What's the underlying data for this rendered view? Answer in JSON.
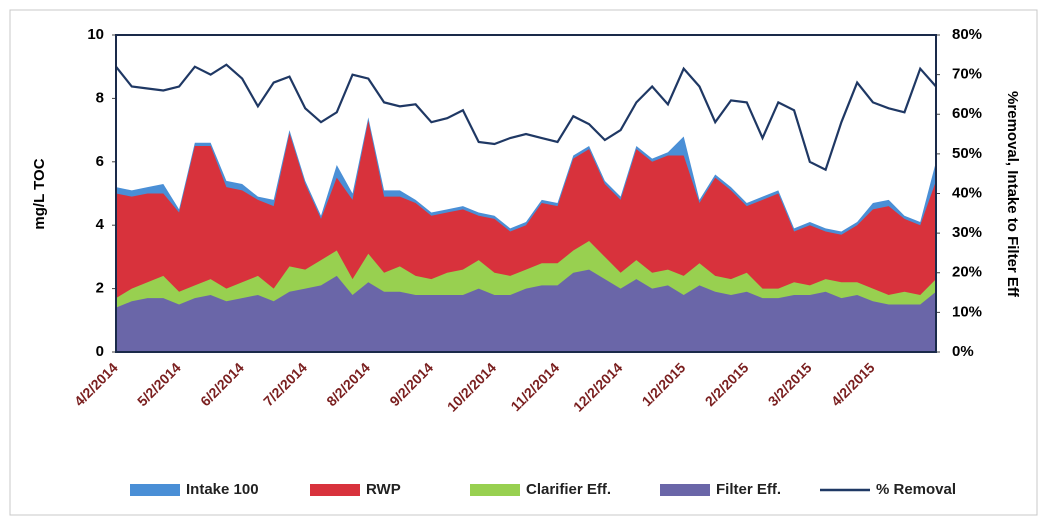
{
  "chart_data": {
    "type": "area",
    "y_label": "mg/L TOC",
    "y2_label": "%removal, Intake to Filter Eff",
    "categories": [
      "4/2/2014",
      null,
      null,
      null,
      "5/2/2014",
      null,
      null,
      null,
      "6/2/2014",
      null,
      null,
      null,
      "7/2/2014",
      null,
      null,
      null,
      "8/2/2014",
      null,
      null,
      null,
      "9/2/2014",
      null,
      null,
      null,
      "10/2/2014",
      null,
      null,
      null,
      "11/2/2014",
      null,
      null,
      null,
      "12/2/2014",
      null,
      null,
      null,
      "1/2/2015",
      null,
      null,
      null,
      "2/2/2015",
      null,
      null,
      null,
      "3/2/2015",
      null,
      null,
      null,
      "4/2/2015",
      null,
      null,
      null,
      null
    ],
    "ylim": [
      0,
      10
    ],
    "yticks": [
      0,
      2,
      4,
      6,
      8,
      10
    ],
    "y2lim": [
      0,
      80
    ],
    "y2ticks": [
      {
        "value": 0,
        "label": "0%"
      },
      {
        "value": 10,
        "label": "10%"
      },
      {
        "value": 20,
        "label": "20%"
      },
      {
        "value": 30,
        "label": "30%"
      },
      {
        "value": 40,
        "label": "40%"
      },
      {
        "value": 50,
        "label": "50%"
      },
      {
        "value": 60,
        "label": "60%"
      },
      {
        "value": 70,
        "label": "70%"
      },
      {
        "value": 80,
        "label": "80%"
      }
    ],
    "legend": "bottom",
    "series": [
      {
        "name": "Intake 100",
        "color": "#4a8fd6",
        "values": [
          5.2,
          5.1,
          5.2,
          5.3,
          4.5,
          6.6,
          6.6,
          5.4,
          5.3,
          4.9,
          4.8,
          7.0,
          5.4,
          4.3,
          5.9,
          5.0,
          7.4,
          5.1,
          5.1,
          4.8,
          4.4,
          4.5,
          4.6,
          4.4,
          4.3,
          3.9,
          4.1,
          4.8,
          4.7,
          6.2,
          6.5,
          5.4,
          4.9,
          6.5,
          6.1,
          6.3,
          6.8,
          4.8,
          5.6,
          5.2,
          4.7,
          4.9,
          5.1,
          3.9,
          4.1,
          3.9,
          3.8,
          4.1,
          4.7,
          4.8,
          4.3,
          4.1,
          6.0
        ]
      },
      {
        "name": "RWP",
        "color": "#d8323c",
        "values": [
          5.0,
          4.9,
          5.0,
          5.0,
          4.4,
          6.5,
          6.5,
          5.2,
          5.1,
          4.8,
          4.6,
          6.9,
          5.3,
          4.2,
          5.5,
          4.8,
          7.3,
          4.9,
          4.9,
          4.7,
          4.3,
          4.4,
          4.5,
          4.3,
          4.2,
          3.8,
          4.0,
          4.7,
          4.6,
          6.1,
          6.4,
          5.3,
          4.8,
          6.4,
          6.0,
          6.2,
          6.2,
          4.7,
          5.5,
          5.1,
          4.6,
          4.8,
          5.0,
          3.8,
          4.0,
          3.8,
          3.7,
          4.0,
          4.5,
          4.6,
          4.2,
          4.0,
          5.4
        ]
      },
      {
        "name": "Clarifier Eff.",
        "color": "#98d050",
        "values": [
          1.7,
          2.0,
          2.2,
          2.4,
          1.9,
          2.1,
          2.3,
          2.0,
          2.2,
          2.4,
          2.0,
          2.7,
          2.6,
          2.9,
          3.2,
          2.3,
          3.1,
          2.5,
          2.7,
          2.4,
          2.3,
          2.5,
          2.6,
          2.9,
          2.5,
          2.4,
          2.6,
          2.8,
          2.8,
          3.2,
          3.5,
          3.0,
          2.5,
          2.9,
          2.5,
          2.6,
          2.4,
          2.8,
          2.4,
          2.3,
          2.5,
          2.0,
          2.0,
          2.2,
          2.1,
          2.3,
          2.2,
          2.2,
          2.0,
          1.8,
          1.9,
          1.8,
          2.3
        ]
      },
      {
        "name": "Filter Eff.",
        "color": "#6a66a8",
        "values": [
          1.4,
          1.6,
          1.7,
          1.7,
          1.5,
          1.7,
          1.8,
          1.6,
          1.7,
          1.8,
          1.6,
          1.9,
          2.0,
          2.1,
          2.4,
          1.8,
          2.2,
          1.9,
          1.9,
          1.8,
          1.8,
          1.8,
          1.8,
          2.0,
          1.8,
          1.8,
          2.0,
          2.1,
          2.1,
          2.5,
          2.6,
          2.3,
          2.0,
          2.3,
          2.0,
          2.1,
          1.8,
          2.1,
          1.9,
          1.8,
          1.9,
          1.7,
          1.7,
          1.8,
          1.8,
          1.9,
          1.7,
          1.8,
          1.6,
          1.5,
          1.5,
          1.5,
          1.9
        ]
      },
      {
        "name": "% Removal",
        "color": "#1f3864",
        "axis": "y2",
        "line": true,
        "values": [
          72,
          67,
          66.5,
          66,
          67,
          72,
          70,
          72.5,
          69,
          62,
          68,
          69.5,
          61.5,
          58,
          60.5,
          70,
          69,
          63,
          62,
          62.5,
          58,
          59,
          61,
          53,
          52.5,
          54,
          55,
          54,
          53,
          59.5,
          57.5,
          53.5,
          56,
          63,
          67,
          62.5,
          71.5,
          67,
          58,
          63.5,
          63,
          54,
          63,
          61,
          48,
          46,
          58,
          68,
          63,
          61.5,
          60.5,
          71.5,
          67
        ]
      }
    ]
  }
}
